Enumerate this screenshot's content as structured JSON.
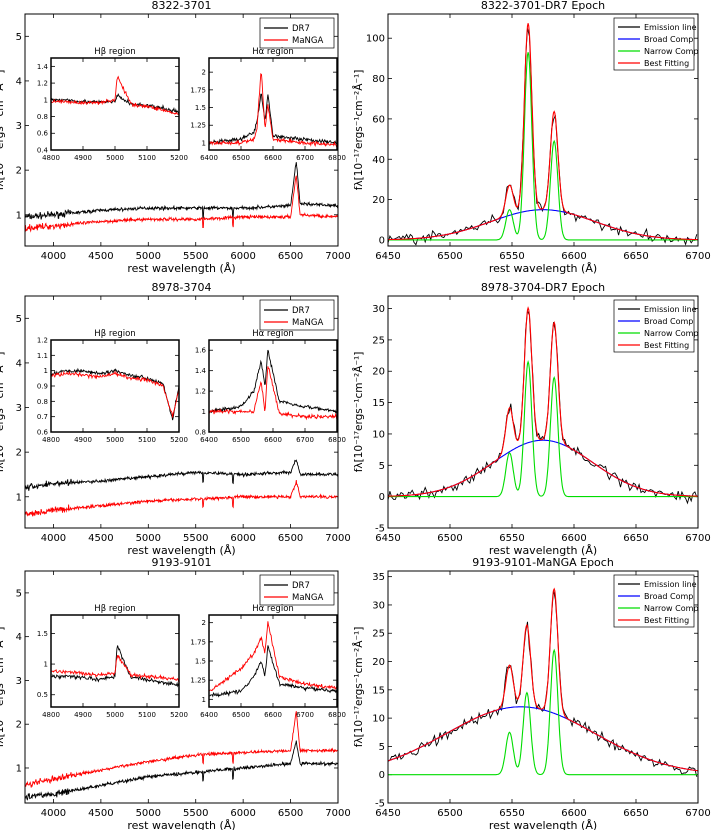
{
  "chart_data": [
    {
      "type": "line",
      "title": "8322-3701",
      "xlabel": "rest wavelength (Å)",
      "ylabel": "fλ[10⁻¹⁷ergs⁻¹cm⁻²Å⁻¹]",
      "xlim": [
        3700,
        7000
      ],
      "ylim": [
        0.3,
        5.5
      ],
      "xticks": [
        4000,
        4500,
        5000,
        5500,
        6000,
        6500,
        7000
      ],
      "yticks": [
        1,
        2,
        3,
        4,
        5
      ],
      "legend": [
        "DR7",
        "MaNGA"
      ],
      "series": [
        {
          "name": "DR7",
          "color": "#000000",
          "x": [
            3700,
            4000,
            4500,
            5000,
            5500,
            6000,
            6500,
            6560,
            6600,
            7000
          ],
          "y": [
            0.95,
            1.0,
            1.1,
            1.15,
            1.15,
            1.15,
            1.2,
            2.2,
            1.25,
            1.2
          ]
        },
        {
          "name": "MaNGA",
          "color": "#ff0000",
          "x": [
            3700,
            4000,
            4500,
            5000,
            5500,
            6000,
            6500,
            6560,
            6600,
            7000
          ],
          "y": [
            0.7,
            0.75,
            0.85,
            0.9,
            0.9,
            0.95,
            0.95,
            1.9,
            1.0,
            0.95
          ]
        }
      ],
      "insets": [
        {
          "title": "Hβ region",
          "xlim": [
            4800,
            5200
          ],
          "ylim": [
            0.4,
            1.5
          ],
          "xticks": [
            4800,
            4900,
            5000,
            5100,
            5200
          ],
          "yticks": [
            0.4,
            0.6,
            0.8,
            1.0,
            1.2,
            1.4
          ],
          "series": [
            {
              "name": "DR7",
              "color": "#000000",
              "x": [
                4800,
                4850,
                4900,
                4950,
                5000,
                5007,
                5050,
                5100,
                5150,
                5200
              ],
              "y": [
                1.0,
                1.0,
                0.98,
                0.97,
                0.98,
                1.05,
                0.95,
                0.93,
                0.9,
                0.85
              ]
            },
            {
              "name": "MaNGA",
              "color": "#ff0000",
              "x": [
                4800,
                4850,
                4900,
                4950,
                5000,
                5007,
                5050,
                5100,
                5150,
                5200
              ],
              "y": [
                0.98,
                0.98,
                0.96,
                0.97,
                1.0,
                1.28,
                0.95,
                0.92,
                0.88,
                0.82
              ]
            }
          ]
        },
        {
          "title": "Hα region",
          "xlim": [
            6400,
            6800
          ],
          "ylim": [
            0.9,
            2.2
          ],
          "xticks": [
            6400,
            6500,
            6600,
            6700,
            6800
          ],
          "yticks": [
            1.0,
            1.25,
            1.5,
            1.75,
            2.0
          ],
          "series": [
            {
              "name": "DR7",
              "color": "#000000",
              "x": [
                6400,
                6500,
                6540,
                6550,
                6563,
                6575,
                6584,
                6600,
                6700,
                6800
              ],
              "y": [
                1.0,
                1.05,
                1.15,
                1.3,
                1.7,
                1.3,
                1.7,
                1.1,
                1.05,
                1.0
              ]
            },
            {
              "name": "MaNGA",
              "color": "#ff0000",
              "x": [
                6400,
                6500,
                6540,
                6550,
                6563,
                6575,
                6584,
                6600,
                6700,
                6800
              ],
              "y": [
                1.0,
                1.0,
                1.05,
                1.2,
                2.05,
                1.2,
                1.55,
                1.05,
                1.0,
                0.98
              ]
            }
          ]
        }
      ]
    },
    {
      "type": "line",
      "title": "8322-3701-DR7 Epoch",
      "xlabel": "rest wavelength (Å)",
      "ylabel": "fλ[10⁻¹⁷ergs⁻¹cm⁻²Å⁻¹]",
      "xlim": [
        6450,
        6700
      ],
      "ylim": [
        -3,
        112
      ],
      "xticks": [
        6450,
        6500,
        6550,
        6600,
        6650,
        6700
      ],
      "yticks": [
        0,
        20,
        40,
        60,
        80,
        100
      ],
      "legend": [
        "Emission line",
        "Broad Comp",
        "Narrow Comp",
        "Best Fitting"
      ],
      "components": {
        "broad": {
          "amp": 15,
          "center": 6575,
          "sigma": 42
        },
        "narrow": [
          {
            "center": 6548,
            "amp": 15,
            "sigma": 3
          },
          {
            "center": 6563,
            "amp": 93,
            "sigma": 3
          },
          {
            "center": 6584,
            "amp": 49,
            "sigma": 3
          }
        ]
      }
    },
    {
      "type": "line",
      "title": "8978-3704",
      "xlabel": "rest wavelength (Å)",
      "ylabel": "fλ[10⁻¹⁷ergs⁻¹cm⁻²Å⁻¹]",
      "xlim": [
        3700,
        7000
      ],
      "ylim": [
        0.3,
        5.5
      ],
      "xticks": [
        4000,
        4500,
        5000,
        5500,
        6000,
        6500,
        7000
      ],
      "yticks": [
        1,
        2,
        3,
        4,
        5
      ],
      "legend": [
        "DR7",
        "MaNGA"
      ],
      "series": [
        {
          "name": "DR7",
          "color": "#000000",
          "x": [
            3700,
            4000,
            4500,
            5000,
            5500,
            6000,
            6500,
            6560,
            6600,
            7000
          ],
          "y": [
            1.2,
            1.3,
            1.35,
            1.45,
            1.55,
            1.5,
            1.55,
            1.85,
            1.5,
            1.5
          ]
        },
        {
          "name": "MaNGA",
          "color": "#ff0000",
          "x": [
            3700,
            4000,
            4500,
            5000,
            5500,
            6000,
            6500,
            6560,
            6600,
            7000
          ],
          "y": [
            0.6,
            0.7,
            0.8,
            0.9,
            0.95,
            1.0,
            1.0,
            1.35,
            1.0,
            1.0
          ]
        }
      ],
      "insets": [
        {
          "title": "Hβ region",
          "xlim": [
            4800,
            5200
          ],
          "ylim": [
            0.6,
            1.2
          ],
          "xticks": [
            4800,
            4900,
            5000,
            5100,
            5200
          ],
          "yticks": [
            0.6,
            0.7,
            0.8,
            0.9,
            1.0,
            1.1,
            1.2
          ],
          "series": [
            {
              "name": "DR7",
              "color": "#000000",
              "x": [
                4800,
                4850,
                4900,
                4950,
                5000,
                5050,
                5100,
                5150,
                5180,
                5200
              ],
              "y": [
                0.98,
                1.0,
                1.0,
                0.98,
                1.0,
                0.97,
                0.95,
                0.92,
                0.68,
                0.9
              ]
            },
            {
              "name": "MaNGA",
              "color": "#ff0000",
              "x": [
                4800,
                4850,
                4900,
                4950,
                5000,
                5050,
                5100,
                5150,
                5180,
                5200
              ],
              "y": [
                0.97,
                0.98,
                0.97,
                0.96,
                0.98,
                0.95,
                0.94,
                0.9,
                0.7,
                0.88
              ]
            }
          ]
        },
        {
          "title": "Hα region",
          "xlim": [
            6400,
            6800
          ],
          "ylim": [
            0.8,
            1.7
          ],
          "xticks": [
            6400,
            6500,
            6600,
            6700,
            6800
          ],
          "yticks": [
            0.8,
            1.0,
            1.2,
            1.4,
            1.6
          ],
          "series": [
            {
              "name": "DR7",
              "color": "#000000",
              "x": [
                6400,
                6500,
                6540,
                6563,
                6575,
                6584,
                6620,
                6700,
                6800
              ],
              "y": [
                1.0,
                1.05,
                1.2,
                1.5,
                1.25,
                1.6,
                1.1,
                1.05,
                1.0
              ]
            },
            {
              "name": "MaNGA",
              "color": "#ff0000",
              "x": [
                6400,
                6500,
                6540,
                6563,
                6575,
                6584,
                6620,
                6700,
                6800
              ],
              "y": [
                1.0,
                1.0,
                1.0,
                1.3,
                1.0,
                1.45,
                0.98,
                0.95,
                0.95
              ]
            }
          ]
        }
      ]
    },
    {
      "type": "line",
      "title": "8978-3704-DR7 Epoch",
      "xlabel": "rest wavelength (Å)",
      "ylabel": "fλ[10⁻¹⁷ergs⁻¹cm⁻²Å⁻¹]",
      "xlim": [
        6450,
        6700
      ],
      "ylim": [
        -5,
        32
      ],
      "xticks": [
        6450,
        6500,
        6550,
        6600,
        6650,
        6700
      ],
      "yticks": [
        -5,
        0,
        5,
        10,
        15,
        20,
        25,
        30
      ],
      "legend": [
        "Emission line",
        "Broad Comp",
        "Narrow Comp",
        "Best Fitting"
      ],
      "components": {
        "broad": {
          "amp": 9,
          "center": 6575,
          "sigma": 40
        },
        "narrow": [
          {
            "center": 6548,
            "amp": 7,
            "sigma": 3
          },
          {
            "center": 6563,
            "amp": 21.5,
            "sigma": 3
          },
          {
            "center": 6584,
            "amp": 19,
            "sigma": 3
          }
        ]
      }
    },
    {
      "type": "line",
      "title": "9193-9101",
      "xlabel": "rest wavelength (Å)",
      "ylabel": "fλ[10⁻¹⁷ergs⁻¹cm⁻²Å⁻¹]",
      "xlim": [
        3700,
        7000
      ],
      "ylim": [
        0.2,
        5.5
      ],
      "xticks": [
        4000,
        4500,
        5000,
        5500,
        6000,
        6500,
        7000
      ],
      "yticks": [
        1,
        2,
        3,
        4,
        5
      ],
      "legend": [
        "DR7",
        "MaNGA"
      ],
      "series": [
        {
          "name": "DR7",
          "color": "#000000",
          "x": [
            3700,
            4000,
            4500,
            5000,
            5500,
            6000,
            6500,
            6560,
            6600,
            7000
          ],
          "y": [
            0.35,
            0.4,
            0.6,
            0.8,
            0.9,
            1.0,
            1.1,
            1.6,
            1.1,
            1.1
          ]
        },
        {
          "name": "MaNGA",
          "color": "#ff0000",
          "x": [
            3700,
            4000,
            4500,
            5000,
            5500,
            6000,
            6500,
            6560,
            6600,
            7000
          ],
          "y": [
            0.6,
            0.75,
            0.95,
            1.15,
            1.3,
            1.35,
            1.4,
            2.3,
            1.4,
            1.4
          ]
        }
      ],
      "insets": [
        {
          "title": "Hβ region",
          "xlim": [
            4800,
            5200
          ],
          "ylim": [
            0.3,
            1.8
          ],
          "xticks": [
            4800,
            4900,
            5000,
            5100,
            5200
          ],
          "yticks": [
            0.5,
            1.0,
            1.5
          ],
          "series": [
            {
              "name": "DR7",
              "color": "#000000",
              "x": [
                4800,
                4850,
                4900,
                4950,
                5000,
                5007,
                5050,
                5100,
                5150,
                5200
              ],
              "y": [
                0.8,
                0.8,
                0.78,
                0.75,
                0.8,
                1.3,
                0.78,
                0.75,
                0.7,
                0.65
              ]
            },
            {
              "name": "MaNGA",
              "color": "#ff0000",
              "x": [
                4800,
                4850,
                4900,
                4950,
                5000,
                5007,
                5050,
                5100,
                5150,
                5200
              ],
              "y": [
                0.88,
                0.87,
                0.85,
                0.82,
                0.85,
                1.15,
                0.82,
                0.8,
                0.78,
                0.75
              ]
            }
          ]
        },
        {
          "title": "Hα region",
          "xlim": [
            6400,
            6800
          ],
          "ylim": [
            0.9,
            2.1
          ],
          "xticks": [
            6400,
            6500,
            6600,
            6700,
            6800
          ],
          "yticks": [
            1.0,
            1.25,
            1.5,
            1.75,
            2.0
          ],
          "series": [
            {
              "name": "DR7",
              "color": "#000000",
              "x": [
                6400,
                6500,
                6540,
                6563,
                6575,
                6584,
                6620,
                6700,
                6800
              ],
              "y": [
                1.05,
                1.1,
                1.3,
                1.5,
                1.3,
                1.7,
                1.2,
                1.15,
                1.1
              ]
            },
            {
              "name": "MaNGA",
              "color": "#ff0000",
              "x": [
                6400,
                6500,
                6540,
                6563,
                6575,
                6584,
                6620,
                6700,
                6800
              ],
              "y": [
                1.1,
                1.4,
                1.6,
                1.8,
                1.6,
                2.0,
                1.3,
                1.2,
                1.15
              ]
            }
          ]
        }
      ]
    },
    {
      "type": "line",
      "title": "9193-9101-MaNGA Epoch",
      "xlabel": "rest wavelength (Å)",
      "ylabel": "fλ[10⁻¹⁷ergs⁻¹cm⁻²Å⁻¹]",
      "xlim": [
        6450,
        6700
      ],
      "ylim": [
        -5,
        36
      ],
      "xticks": [
        6450,
        6500,
        6550,
        6600,
        6650,
        6700
      ],
      "yticks": [
        -5,
        0,
        5,
        10,
        15,
        20,
        25,
        30,
        35
      ],
      "legend": [
        "Emission line",
        "Broad Comp",
        "Narrow Comp",
        "Best Fitting"
      ],
      "components": {
        "broad": {
          "amp": 12,
          "center": 6557,
          "sigma": 60
        },
        "narrow": [
          {
            "center": 6548,
            "amp": 7.5,
            "sigma": 3
          },
          {
            "center": 6562,
            "amp": 14.5,
            "sigma": 3
          },
          {
            "center": 6584,
            "amp": 22,
            "sigma": 3
          }
        ]
      }
    }
  ]
}
